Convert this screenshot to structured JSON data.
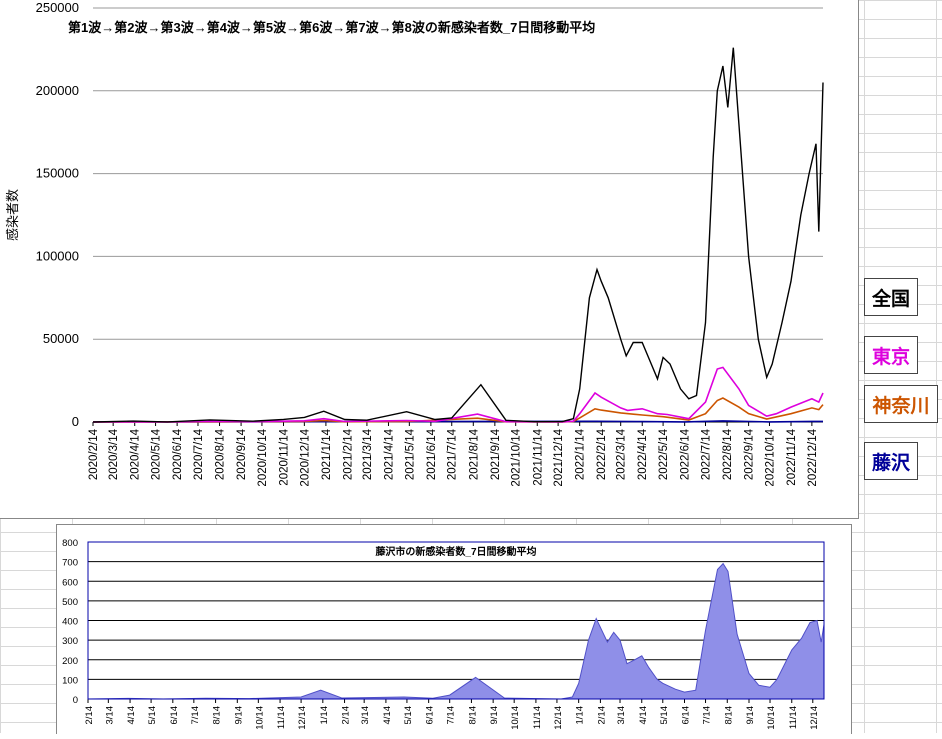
{
  "chart_data": [
    {
      "type": "line",
      "title": "第1波→第2波→第3波→第4波→第5波→第6波→第7波→第8波の新感染者数_7日間移動平均",
      "ylabel": "感染者数",
      "ylim": [
        0,
        250000
      ],
      "yticks": [
        "250000",
        "200000",
        "150000",
        "100000",
        "50000",
        "0"
      ],
      "grid": true,
      "legend_placement": "right",
      "x_dates": [
        "2020-02-14",
        "2020-03-14",
        "2020-04-14",
        "2020-05-14",
        "2020-06-14",
        "2020-07-14",
        "2020-08-14",
        "2020-09-14",
        "2020-10-14",
        "2020-11-14",
        "2020-12-14",
        "2021-01-14",
        "2021-02-14",
        "2021-03-14",
        "2021-04-14",
        "2021-05-14",
        "2021-06-14",
        "2021-07-14",
        "2021-08-14",
        "2021-09-14",
        "2021-10-14",
        "2021-11-14",
        "2021-12-14",
        "2022-01-14",
        "2022-02-14",
        "2022-03-14",
        "2022-04-14",
        "2022-05-14",
        "2022-06-14",
        "2022-07-14",
        "2022-08-14",
        "2022-09-14",
        "2022-10-14",
        "2022-11-14",
        "2022-12-14"
      ],
      "x_tick_labels": [
        "2020/2/14",
        "2020/3/14",
        "2020/4/14",
        "2020/5/14",
        "2020/6/14",
        "2020/7/14",
        "2020/8/14",
        "2020/9/14",
        "2020/10/14",
        "2020/11/14",
        "2020/12/14",
        "2021/1/14",
        "2021/2/14",
        "2021/3/14",
        "2021/4/14",
        "2021/5/14",
        "2021/6/14",
        "2021/7/14",
        "2021/8/14",
        "2021/9/14",
        "2021/10/14",
        "2021/11/14",
        "2021/12/14",
        "2022/1/14",
        "2022/2/14",
        "2022/3/14",
        "2022/4/14",
        "2022/5/14",
        "2022/6/14",
        "2022/7/14",
        "2022/8/14",
        "2022/9/14",
        "2022/10/14",
        "2022/11/14",
        "2022/12/14"
      ],
      "series": [
        {
          "name": "全国",
          "color": "#000000",
          "points": [
            [
              "2020-02-14",
              0
            ],
            [
              "2020-04-12",
              550
            ],
            [
              "2020-05-31",
              40
            ],
            [
              "2020-07-31",
              1250
            ],
            [
              "2020-10-01",
              500
            ],
            [
              "2020-11-14",
              1600
            ],
            [
              "2020-12-14",
              2800
            ],
            [
              "2021-01-11",
              6500
            ],
            [
              "2021-02-10",
              1500
            ],
            [
              "2021-03-14",
              1100
            ],
            [
              "2021-05-10",
              6200
            ],
            [
              "2021-06-20",
              1500
            ],
            [
              "2021-07-14",
              2500
            ],
            [
              "2021-08-25",
              22500
            ],
            [
              "2021-09-30",
              1000
            ],
            [
              "2021-11-10",
              200
            ],
            [
              "2021-12-20",
              250
            ],
            [
              "2022-01-05",
              2000
            ],
            [
              "2022-01-14",
              20000
            ],
            [
              "2022-01-28",
              75000
            ],
            [
              "2022-02-08",
              92000
            ],
            [
              "2022-02-14",
              85000
            ],
            [
              "2022-02-24",
              75000
            ],
            [
              "2022-03-14",
              50000
            ],
            [
              "2022-03-22",
              40000
            ],
            [
              "2022-04-01",
              48000
            ],
            [
              "2022-04-14",
              48000
            ],
            [
              "2022-04-24",
              38000
            ],
            [
              "2022-05-06",
              26000
            ],
            [
              "2022-05-14",
              39000
            ],
            [
              "2022-05-24",
              35000
            ],
            [
              "2022-06-08",
              20000
            ],
            [
              "2022-06-20",
              14000
            ],
            [
              "2022-07-01",
              16000
            ],
            [
              "2022-07-14",
              60000
            ],
            [
              "2022-07-25",
              160000
            ],
            [
              "2022-07-31",
              200000
            ],
            [
              "2022-08-08",
              215000
            ],
            [
              "2022-08-15",
              190000
            ],
            [
              "2022-08-23",
              226000
            ],
            [
              "2022-08-31",
              180000
            ],
            [
              "2022-09-14",
              100000
            ],
            [
              "2022-09-28",
              50000
            ],
            [
              "2022-10-10",
              27000
            ],
            [
              "2022-10-18",
              35000
            ],
            [
              "2022-11-01",
              60000
            ],
            [
              "2022-11-14",
              85000
            ],
            [
              "2022-11-28",
              125000
            ],
            [
              "2022-12-10",
              150000
            ],
            [
              "2022-12-20",
              168000
            ],
            [
              "2022-12-24",
              115000
            ],
            [
              "2022-12-30",
              205000
            ]
          ]
        },
        {
          "name": "東京",
          "color": "#dd00dd",
          "points": [
            [
              "2020-02-14",
              0
            ],
            [
              "2020-04-12",
              150
            ],
            [
              "2020-05-31",
              10
            ],
            [
              "2020-07-31",
              400
            ],
            [
              "2020-10-01",
              180
            ],
            [
              "2020-12-14",
              700
            ],
            [
              "2021-01-11",
              2000
            ],
            [
              "2021-02-10",
              300
            ],
            [
              "2021-05-10",
              900
            ],
            [
              "2021-06-20",
              400
            ],
            [
              "2021-08-20",
              4800
            ],
            [
              "2021-09-30",
              200
            ],
            [
              "2021-12-20",
              30
            ],
            [
              "2022-01-05",
              500
            ],
            [
              "2022-01-14",
              5000
            ],
            [
              "2022-02-05",
              17500
            ],
            [
              "2022-02-14",
              15000
            ],
            [
              "2022-03-14",
              8500
            ],
            [
              "2022-03-24",
              7000
            ],
            [
              "2022-04-14",
              8000
            ],
            [
              "2022-05-06",
              5000
            ],
            [
              "2022-05-20",
              4500
            ],
            [
              "2022-06-20",
              2000
            ],
            [
              "2022-07-14",
              12000
            ],
            [
              "2022-07-31",
              32000
            ],
            [
              "2022-08-08",
              33000
            ],
            [
              "2022-08-31",
              20000
            ],
            [
              "2022-09-14",
              10000
            ],
            [
              "2022-10-10",
              3500
            ],
            [
              "2022-10-24",
              5000
            ],
            [
              "2022-11-14",
              9000
            ],
            [
              "2022-12-14",
              14000
            ],
            [
              "2022-12-24",
              12000
            ],
            [
              "2022-12-30",
              17500
            ]
          ]
        },
        {
          "name": "神奈川",
          "color": "#cc5500",
          "points": [
            [
              "2020-02-14",
              0
            ],
            [
              "2020-04-12",
              60
            ],
            [
              "2020-07-31",
              150
            ],
            [
              "2020-12-14",
              300
            ],
            [
              "2021-01-11",
              900
            ],
            [
              "2021-02-10",
              150
            ],
            [
              "2021-05-10",
              300
            ],
            [
              "2021-08-20",
              2300
            ],
            [
              "2021-09-30",
              100
            ],
            [
              "2021-12-20",
              20
            ],
            [
              "2022-01-05",
              300
            ],
            [
              "2022-01-14",
              2500
            ],
            [
              "2022-02-05",
              8000
            ],
            [
              "2022-02-14",
              7200
            ],
            [
              "2022-03-14",
              5500
            ],
            [
              "2022-04-14",
              4200
            ],
            [
              "2022-05-14",
              3200
            ],
            [
              "2022-06-20",
              1200
            ],
            [
              "2022-07-14",
              5000
            ],
            [
              "2022-07-31",
              13000
            ],
            [
              "2022-08-08",
              14500
            ],
            [
              "2022-08-31",
              9000
            ],
            [
              "2022-09-14",
              5000
            ],
            [
              "2022-10-10",
              1800
            ],
            [
              "2022-11-14",
              5000
            ],
            [
              "2022-12-14",
              8500
            ],
            [
              "2022-12-24",
              7500
            ],
            [
              "2022-12-30",
              10500
            ]
          ]
        },
        {
          "name": "藤沢",
          "color": "#000099",
          "points": [
            [
              "2020-02-14",
              0
            ],
            [
              "2022-02-05",
              400
            ],
            [
              "2022-04-14",
              220
            ],
            [
              "2022-06-14",
              40
            ],
            [
              "2022-08-08",
              680
            ],
            [
              "2022-10-14",
              70
            ],
            [
              "2022-12-14",
              390
            ],
            [
              "2022-12-30",
              380
            ]
          ]
        }
      ]
    },
    {
      "type": "area",
      "title": "藤沢市の新感染者数_7日間移動平均",
      "ylim": [
        0,
        800
      ],
      "yticks": [
        "800",
        "700",
        "600",
        "500",
        "400",
        "300",
        "200",
        "100",
        "0"
      ],
      "grid": true,
      "x_dates": [
        "2020-02-14",
        "2020-03-14",
        "2020-04-14",
        "2020-05-14",
        "2020-06-14",
        "2020-07-14",
        "2020-08-14",
        "2020-09-14",
        "2020-10-14",
        "2020-11-14",
        "2020-12-14",
        "2021-01-14",
        "2021-02-14",
        "2021-03-14",
        "2021-04-14",
        "2021-05-14",
        "2021-06-14",
        "2021-07-14",
        "2021-08-14",
        "2021-09-14",
        "2021-10-14",
        "2021-11-14",
        "2021-12-14",
        "2022-01-14",
        "2022-02-14",
        "2022-03-14",
        "2022-04-14",
        "2022-05-14",
        "2022-06-14",
        "2022-07-14",
        "2022-08-14",
        "2022-09-14",
        "2022-10-14",
        "2022-11-14",
        "2022-12-14"
      ],
      "x_tick_labels": [
        "2/14",
        "3/14",
        "4/14",
        "5/14",
        "6/14",
        "7/14",
        "8/14",
        "9/14",
        "10/14",
        "11/14",
        "12/14",
        "1/14",
        "2/14",
        "3/14",
        "4/14",
        "5/14",
        "6/14",
        "7/14",
        "8/14",
        "9/14",
        "10/14",
        "11/14",
        "12/14",
        "1/14",
        "2/14",
        "3/14",
        "4/14",
        "5/14",
        "6/14",
        "7/14",
        "8/14",
        "9/14",
        "10/14",
        "11/14",
        "12/14"
      ],
      "series": [
        {
          "color": "#8f8fe8",
          "points": [
            [
              "2020-02-14",
              0
            ],
            [
              "2020-04-12",
              3
            ],
            [
              "2020-05-31",
              0
            ],
            [
              "2020-07-31",
              4
            ],
            [
              "2020-10-01",
              2
            ],
            [
              "2020-12-14",
              10
            ],
            [
              "2021-01-11",
              45
            ],
            [
              "2021-02-10",
              5
            ],
            [
              "2021-05-10",
              10
            ],
            [
              "2021-06-20",
              4
            ],
            [
              "2021-07-14",
              20
            ],
            [
              "2021-08-20",
              110
            ],
            [
              "2021-09-30",
              5
            ],
            [
              "2021-12-20",
              0
            ],
            [
              "2022-01-05",
              10
            ],
            [
              "2022-01-14",
              80
            ],
            [
              "2022-01-28",
              300
            ],
            [
              "2022-02-08",
              410
            ],
            [
              "2022-02-24",
              290
            ],
            [
              "2022-03-05",
              340
            ],
            [
              "2022-03-14",
              300
            ],
            [
              "2022-03-24",
              180
            ],
            [
              "2022-04-04",
              200
            ],
            [
              "2022-04-14",
              220
            ],
            [
              "2022-04-24",
              160
            ],
            [
              "2022-05-06",
              100
            ],
            [
              "2022-05-14",
              80
            ],
            [
              "2022-06-01",
              50
            ],
            [
              "2022-06-14",
              35
            ],
            [
              "2022-06-30",
              45
            ],
            [
              "2022-07-14",
              350
            ],
            [
              "2022-07-31",
              660
            ],
            [
              "2022-08-08",
              690
            ],
            [
              "2022-08-15",
              650
            ],
            [
              "2022-08-28",
              330
            ],
            [
              "2022-09-14",
              130
            ],
            [
              "2022-09-28",
              70
            ],
            [
              "2022-10-14",
              60
            ],
            [
              "2022-10-24",
              100
            ],
            [
              "2022-11-14",
              250
            ],
            [
              "2022-11-28",
              310
            ],
            [
              "2022-12-10",
              390
            ],
            [
              "2022-12-20",
              400
            ],
            [
              "2022-12-26",
              290
            ],
            [
              "2022-12-30",
              380
            ]
          ]
        }
      ]
    }
  ],
  "legend": {
    "national": "全国",
    "tokyo": "東京",
    "kanagawa": "神奈川",
    "fujisawa": "藤沢"
  },
  "colors": {
    "national": "#000000",
    "tokyo": "#dd00dd",
    "kanagawa": "#cc5500",
    "fujisawa": "#000099",
    "area_fill": "#8f8fe8"
  }
}
